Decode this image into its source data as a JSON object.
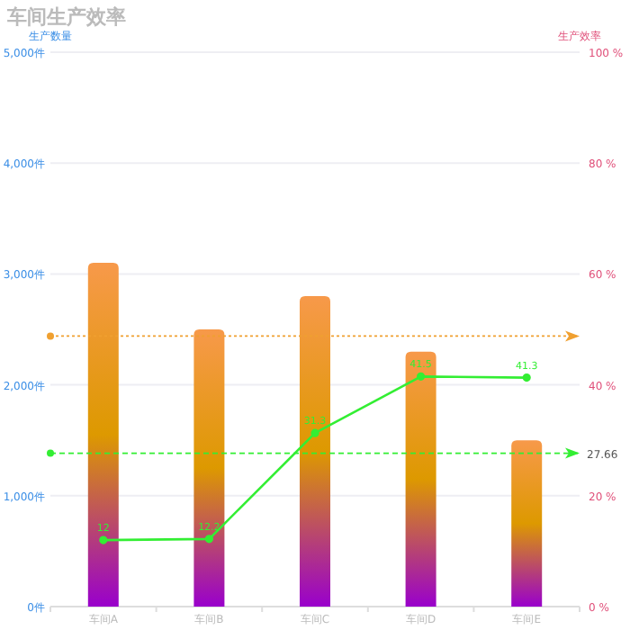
{
  "chart_data": {
    "type": "bar",
    "title": "车间生产效率",
    "ylabel": "生产数量",
    "y2label": "生产效率",
    "categories": [
      "车间A",
      "车间B",
      "车间C",
      "车间D",
      "车间E"
    ],
    "series": [
      {
        "color": "#f7994a",
        "values": [
          3100,
          2500,
          2800,
          2300,
          1500
        ]
      },
      {
        "type": "line",
        "axis": "y2",
        "color": "#33ee33",
        "marker": "circle",
        "values": [
          12,
          12.2,
          31.3,
          41.5,
          41.3
        ],
        "value_labels": [
          "12",
          "12.2",
          "31.3",
          "41.5",
          "41.3"
        ]
      }
    ],
    "ylim": [
      0,
      5000
    ],
    "yticks": [
      {
        "value": 0,
        "label": "0件"
      },
      {
        "value": 1000,
        "label": "1,000件"
      },
      {
        "value": 2000,
        "label": "2,000件"
      },
      {
        "value": 3000,
        "label": "3,000件"
      },
      {
        "value": 4000,
        "label": "4,000件"
      },
      {
        "value": 5000,
        "label": "5,000件"
      }
    ],
    "y2lim": [
      0,
      100
    ],
    "y2ticks": [
      {
        "value": 0,
        "label": "0 %"
      },
      {
        "value": 20,
        "label": "20 %"
      },
      {
        "value": 40,
        "label": "40 %"
      },
      {
        "value": 60,
        "label": "60 %"
      },
      {
        "value": 80,
        "label": "80 %"
      },
      {
        "value": 100,
        "label": "100 %"
      }
    ],
    "grid": "y",
    "ref_lines": [
      {
        "axis": "y",
        "value": 2440,
        "color": "#f0a030",
        "line_style": "dotted"
      },
      {
        "axis": "y2",
        "value": 27.66,
        "label": "27.66",
        "color": "#33ee33",
        "line_style": "dashed"
      }
    ]
  }
}
